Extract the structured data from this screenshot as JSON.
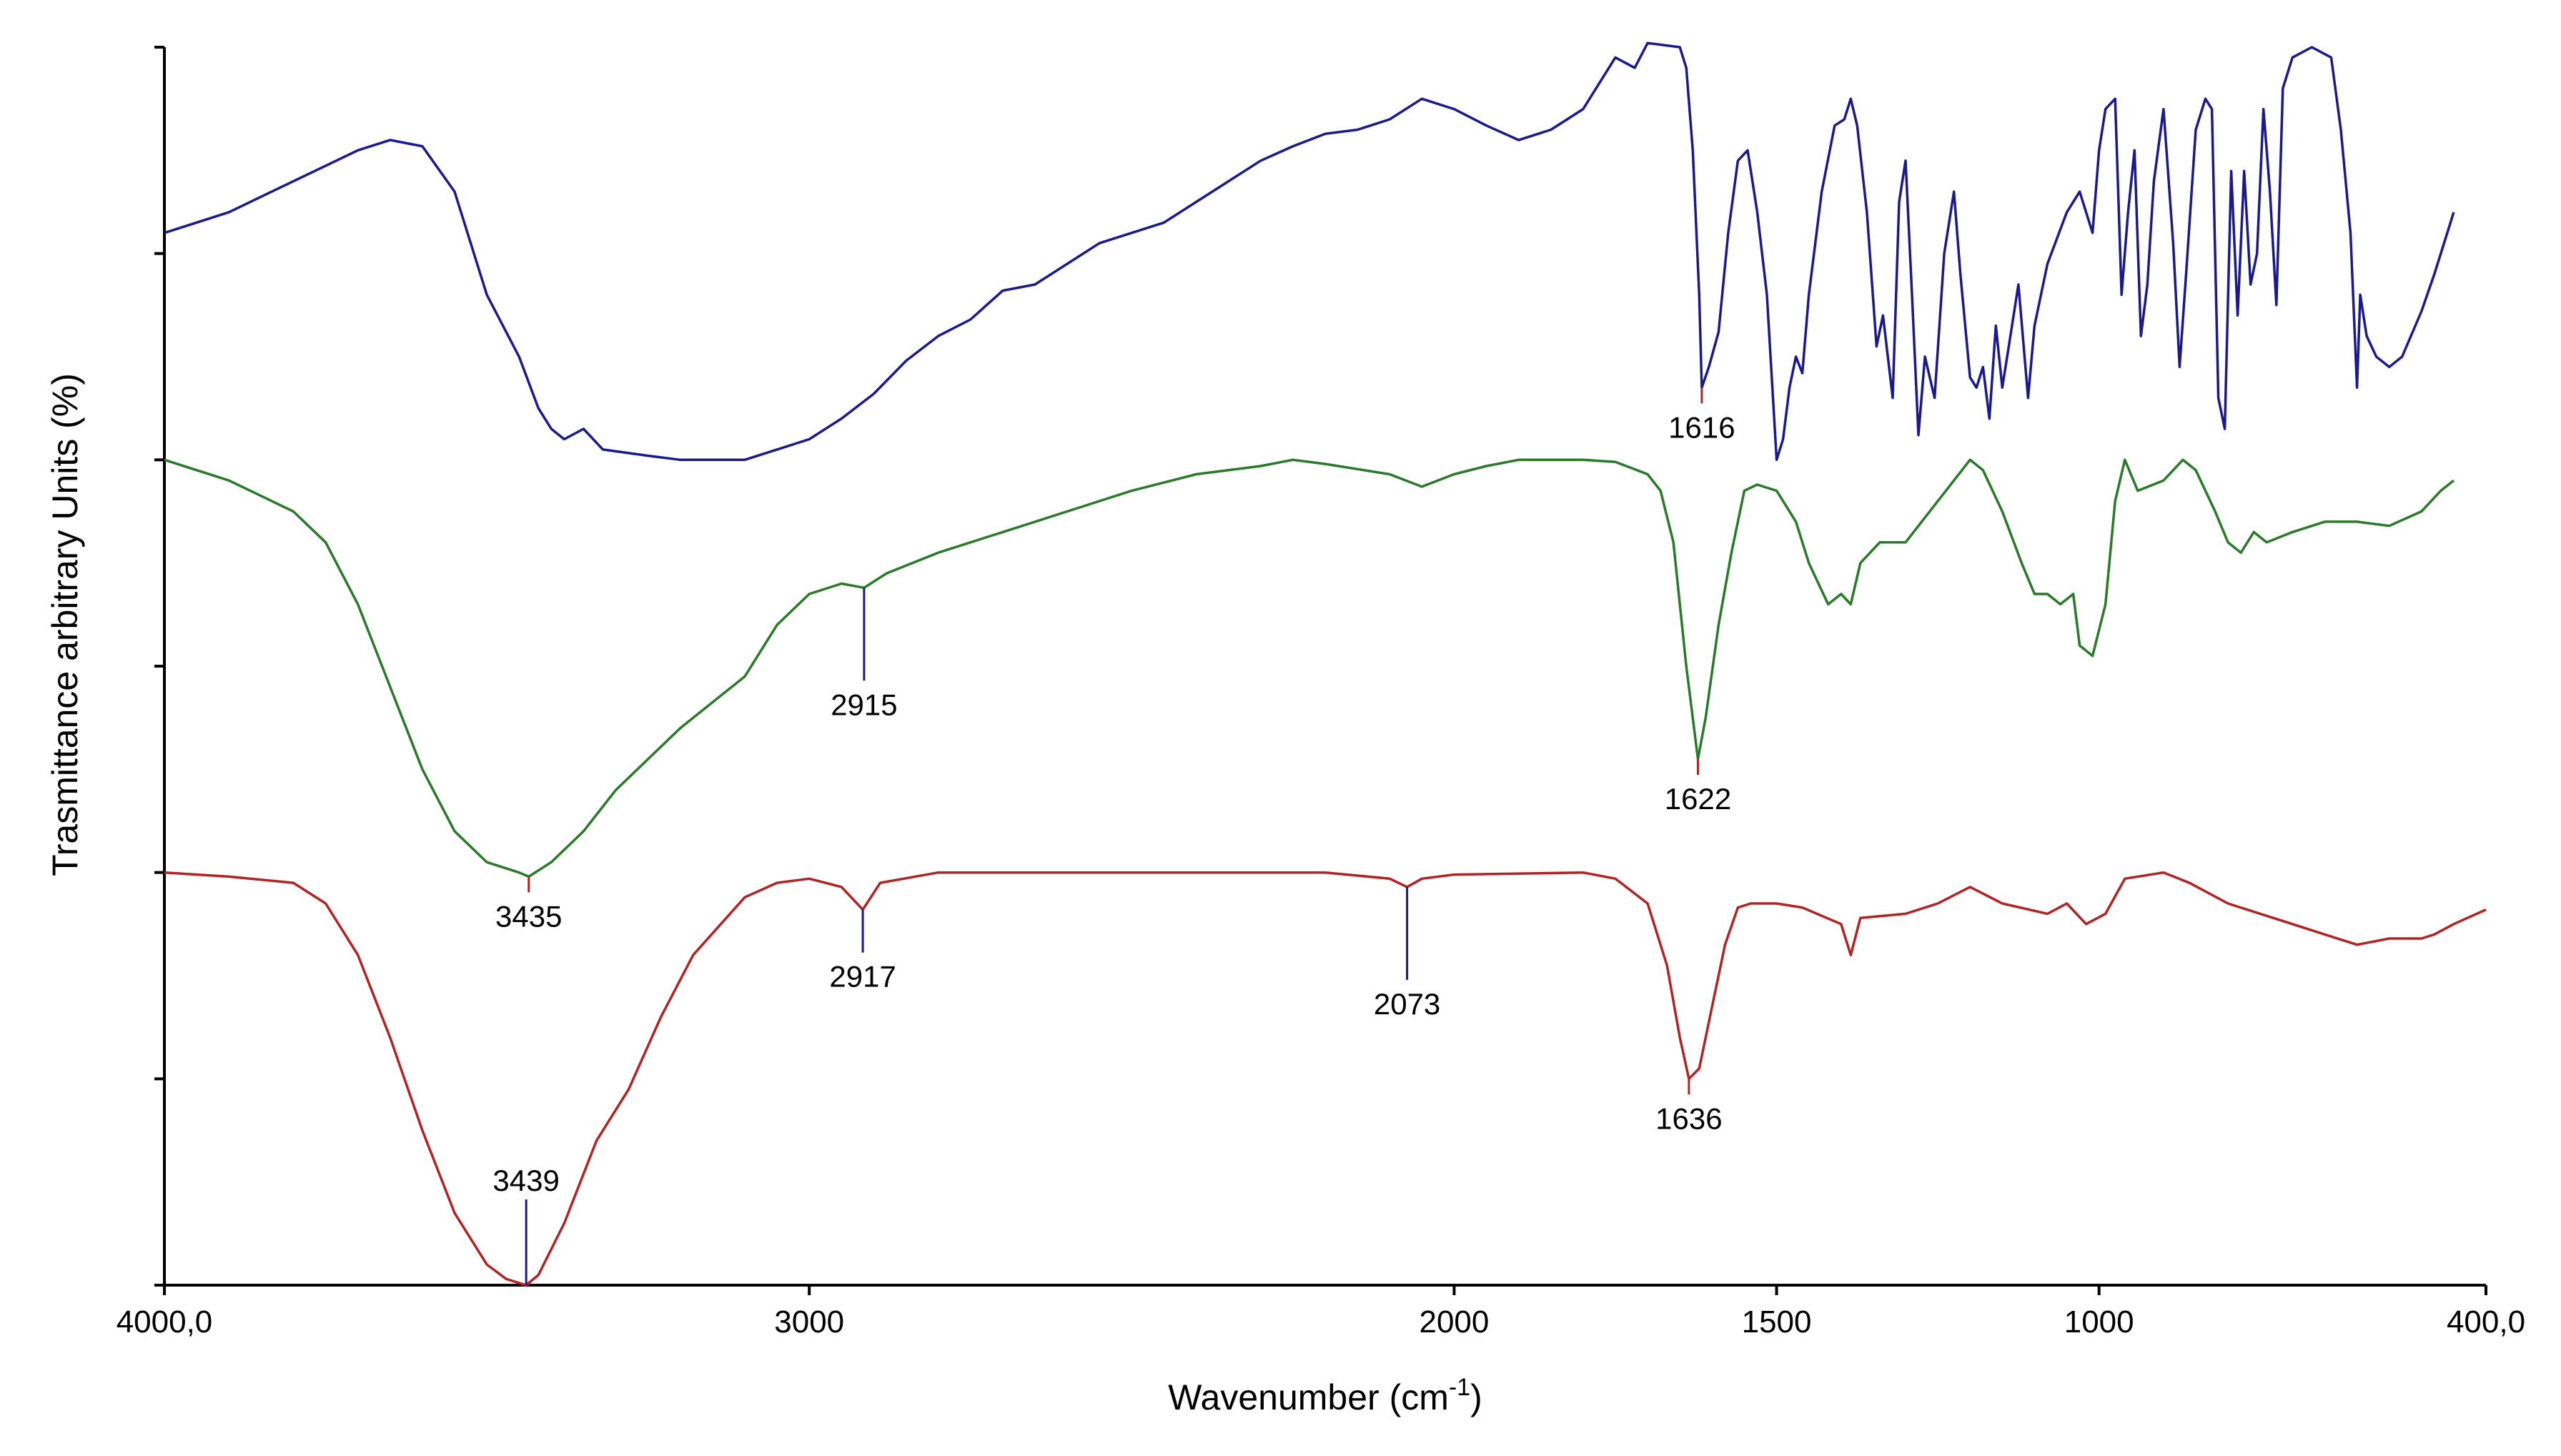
{
  "chart_data": {
    "type": "line",
    "xlabel": "Wavenumber (cm",
    "xlabel_sup": "-1",
    "xlabel_close": ")",
    "ylabel": "Trasmittance arbitrary Units (%)",
    "xlim": [
      4000,
      400
    ],
    "x_reversed": true,
    "x_ticks": [
      {
        "value": 4000,
        "label": "4000,0"
      },
      {
        "value": 3000,
        "label": "3000"
      },
      {
        "value": 2000,
        "label": "2000"
      },
      {
        "value": 1500,
        "label": "1500"
      },
      {
        "value": 1000,
        "label": "1000"
      },
      {
        "value": 400,
        "label": "400,0"
      }
    ],
    "ylim": [
      0,
      6
    ],
    "y_ticks": [
      0,
      1,
      2,
      3,
      4,
      5,
      6
    ],
    "y_tick_labels_shown": false,
    "grid": false,
    "legend": "none",
    "series": [
      {
        "color": "#1a1a8c",
        "points": [
          [
            4000,
            5.1
          ],
          [
            3900,
            5.2
          ],
          [
            3800,
            5.35
          ],
          [
            3700,
            5.5
          ],
          [
            3650,
            5.55
          ],
          [
            3600,
            5.52
          ],
          [
            3550,
            5.3
          ],
          [
            3500,
            4.8
          ],
          [
            3450,
            4.5
          ],
          [
            3420,
            4.25
          ],
          [
            3400,
            4.15
          ],
          [
            3380,
            4.1
          ],
          [
            3350,
            4.15
          ],
          [
            3320,
            4.05
          ],
          [
            3250,
            4.02
          ],
          [
            3200,
            4.0
          ],
          [
            3100,
            4.0
          ],
          [
            3050,
            4.05
          ],
          [
            3000,
            4.1
          ],
          [
            2950,
            4.2
          ],
          [
            2900,
            4.32
          ],
          [
            2850,
            4.48
          ],
          [
            2800,
            4.6
          ],
          [
            2750,
            4.68
          ],
          [
            2700,
            4.82
          ],
          [
            2650,
            4.85
          ],
          [
            2600,
            4.95
          ],
          [
            2550,
            5.05
          ],
          [
            2500,
            5.1
          ],
          [
            2450,
            5.15
          ],
          [
            2400,
            5.25
          ],
          [
            2350,
            5.35
          ],
          [
            2300,
            5.45
          ],
          [
            2250,
            5.52
          ],
          [
            2200,
            5.58
          ],
          [
            2150,
            5.6
          ],
          [
            2100,
            5.65
          ],
          [
            2050,
            5.75
          ],
          [
            2000,
            5.7
          ],
          [
            1950,
            5.62
          ],
          [
            1900,
            5.55
          ],
          [
            1850,
            5.6
          ],
          [
            1800,
            5.7
          ],
          [
            1750,
            5.95
          ],
          [
            1720,
            5.9
          ],
          [
            1700,
            6.02
          ],
          [
            1650,
            6.0
          ],
          [
            1640,
            5.9
          ],
          [
            1630,
            5.5
          ],
          [
            1620,
            4.8
          ],
          [
            1616,
            4.35
          ],
          [
            1605,
            4.45
          ],
          [
            1590,
            4.62
          ],
          [
            1575,
            5.1
          ],
          [
            1560,
            5.45
          ],
          [
            1545,
            5.5
          ],
          [
            1530,
            5.2
          ],
          [
            1515,
            4.8
          ],
          [
            1500,
            4.0
          ],
          [
            1490,
            4.1
          ],
          [
            1480,
            4.35
          ],
          [
            1470,
            4.5
          ],
          [
            1460,
            4.42
          ],
          [
            1450,
            4.8
          ],
          [
            1430,
            5.3
          ],
          [
            1410,
            5.62
          ],
          [
            1395,
            5.65
          ],
          [
            1385,
            5.75
          ],
          [
            1375,
            5.62
          ],
          [
            1360,
            5.2
          ],
          [
            1345,
            4.55
          ],
          [
            1335,
            4.7
          ],
          [
            1320,
            4.3
          ],
          [
            1310,
            5.25
          ],
          [
            1300,
            5.45
          ],
          [
            1290,
            4.8
          ],
          [
            1280,
            4.12
          ],
          [
            1270,
            4.5
          ],
          [
            1255,
            4.3
          ],
          [
            1240,
            5.0
          ],
          [
            1225,
            5.3
          ],
          [
            1215,
            4.9
          ],
          [
            1200,
            4.4
          ],
          [
            1190,
            4.35
          ],
          [
            1180,
            4.45
          ],
          [
            1170,
            4.2
          ],
          [
            1160,
            4.65
          ],
          [
            1150,
            4.35
          ],
          [
            1140,
            4.55
          ],
          [
            1125,
            4.85
          ],
          [
            1110,
            4.3
          ],
          [
            1100,
            4.65
          ],
          [
            1080,
            4.95
          ],
          [
            1050,
            5.2
          ],
          [
            1030,
            5.3
          ],
          [
            1010,
            5.1
          ],
          [
            1000,
            5.5
          ],
          [
            990,
            5.7
          ],
          [
            975,
            5.75
          ],
          [
            965,
            4.8
          ],
          [
            955,
            5.2
          ],
          [
            945,
            5.5
          ],
          [
            935,
            4.6
          ],
          [
            925,
            4.85
          ],
          [
            915,
            5.35
          ],
          [
            900,
            5.7
          ],
          [
            885,
            5.05
          ],
          [
            875,
            4.45
          ],
          [
            865,
            4.9
          ],
          [
            850,
            5.6
          ],
          [
            835,
            5.75
          ],
          [
            825,
            5.7
          ],
          [
            815,
            4.3
          ],
          [
            805,
            4.15
          ],
          [
            795,
            5.4
          ],
          [
            785,
            4.7
          ],
          [
            775,
            5.4
          ],
          [
            765,
            4.85
          ],
          [
            755,
            5.0
          ],
          [
            745,
            5.7
          ],
          [
            735,
            5.3
          ],
          [
            725,
            4.75
          ],
          [
            715,
            5.8
          ],
          [
            700,
            5.95
          ],
          [
            670,
            6.0
          ],
          [
            640,
            5.95
          ],
          [
            625,
            5.6
          ],
          [
            610,
            5.1
          ],
          [
            600,
            4.35
          ],
          [
            595,
            4.8
          ],
          [
            585,
            4.6
          ],
          [
            570,
            4.5
          ],
          [
            550,
            4.45
          ],
          [
            530,
            4.5
          ],
          [
            500,
            4.72
          ],
          [
            480,
            4.9
          ],
          [
            460,
            5.1
          ],
          [
            450,
            5.2
          ]
        ]
      },
      {
        "color": "#2a7a2a",
        "points": [
          [
            4000,
            4.0
          ],
          [
            3900,
            3.9
          ],
          [
            3800,
            3.75
          ],
          [
            3750,
            3.6
          ],
          [
            3700,
            3.3
          ],
          [
            3650,
            2.9
          ],
          [
            3600,
            2.5
          ],
          [
            3550,
            2.2
          ],
          [
            3500,
            2.05
          ],
          [
            3450,
            2.0
          ],
          [
            3435,
            1.98
          ],
          [
            3400,
            2.05
          ],
          [
            3350,
            2.2
          ],
          [
            3300,
            2.4
          ],
          [
            3200,
            2.7
          ],
          [
            3100,
            2.95
          ],
          [
            3050,
            3.2
          ],
          [
            3000,
            3.35
          ],
          [
            2950,
            3.4
          ],
          [
            2915,
            3.38
          ],
          [
            2880,
            3.45
          ],
          [
            2800,
            3.55
          ],
          [
            2700,
            3.65
          ],
          [
            2600,
            3.75
          ],
          [
            2500,
            3.85
          ],
          [
            2400,
            3.93
          ],
          [
            2300,
            3.97
          ],
          [
            2250,
            4.0
          ],
          [
            2200,
            3.98
          ],
          [
            2100,
            3.93
          ],
          [
            2050,
            3.87
          ],
          [
            2000,
            3.93
          ],
          [
            1950,
            3.97
          ],
          [
            1900,
            4.0
          ],
          [
            1800,
            4.0
          ],
          [
            1750,
            3.99
          ],
          [
            1700,
            3.93
          ],
          [
            1680,
            3.85
          ],
          [
            1660,
            3.6
          ],
          [
            1640,
            3.0
          ],
          [
            1622,
            2.55
          ],
          [
            1610,
            2.75
          ],
          [
            1590,
            3.2
          ],
          [
            1570,
            3.55
          ],
          [
            1550,
            3.85
          ],
          [
            1530,
            3.88
          ],
          [
            1500,
            3.85
          ],
          [
            1470,
            3.7
          ],
          [
            1450,
            3.5
          ],
          [
            1420,
            3.3
          ],
          [
            1400,
            3.35
          ],
          [
            1385,
            3.3
          ],
          [
            1370,
            3.5
          ],
          [
            1340,
            3.6
          ],
          [
            1300,
            3.6
          ],
          [
            1250,
            3.8
          ],
          [
            1200,
            4.0
          ],
          [
            1180,
            3.95
          ],
          [
            1150,
            3.75
          ],
          [
            1120,
            3.5
          ],
          [
            1100,
            3.35
          ],
          [
            1080,
            3.35
          ],
          [
            1060,
            3.3
          ],
          [
            1040,
            3.35
          ],
          [
            1030,
            3.1
          ],
          [
            1010,
            3.05
          ],
          [
            990,
            3.3
          ],
          [
            975,
            3.8
          ],
          [
            960,
            4.0
          ],
          [
            940,
            3.85
          ],
          [
            900,
            3.9
          ],
          [
            870,
            4.0
          ],
          [
            850,
            3.95
          ],
          [
            820,
            3.75
          ],
          [
            800,
            3.6
          ],
          [
            780,
            3.55
          ],
          [
            760,
            3.65
          ],
          [
            740,
            3.6
          ],
          [
            700,
            3.65
          ],
          [
            650,
            3.7
          ],
          [
            600,
            3.7
          ],
          [
            550,
            3.68
          ],
          [
            500,
            3.75
          ],
          [
            470,
            3.85
          ],
          [
            450,
            3.9
          ]
        ]
      },
      {
        "color": "#b02424",
        "points": [
          [
            4000,
            2.0
          ],
          [
            3900,
            1.98
          ],
          [
            3800,
            1.95
          ],
          [
            3750,
            1.85
          ],
          [
            3700,
            1.6
          ],
          [
            3650,
            1.2
          ],
          [
            3600,
            0.75
          ],
          [
            3550,
            0.35
          ],
          [
            3500,
            0.1
          ],
          [
            3470,
            0.03
          ],
          [
            3439,
            0.0
          ],
          [
            3420,
            0.05
          ],
          [
            3380,
            0.3
          ],
          [
            3330,
            0.7
          ],
          [
            3280,
            0.95
          ],
          [
            3230,
            1.3
          ],
          [
            3180,
            1.6
          ],
          [
            3100,
            1.88
          ],
          [
            3050,
            1.95
          ],
          [
            3000,
            1.97
          ],
          [
            2950,
            1.93
          ],
          [
            2917,
            1.82
          ],
          [
            2890,
            1.95
          ],
          [
            2800,
            2.0
          ],
          [
            2500,
            2.0
          ],
          [
            2200,
            2.0
          ],
          [
            2100,
            1.97
          ],
          [
            2073,
            1.93
          ],
          [
            2050,
            1.97
          ],
          [
            2000,
            1.99
          ],
          [
            1800,
            2.0
          ],
          [
            1750,
            1.97
          ],
          [
            1700,
            1.85
          ],
          [
            1670,
            1.55
          ],
          [
            1650,
            1.2
          ],
          [
            1636,
            1.0
          ],
          [
            1620,
            1.05
          ],
          [
            1600,
            1.35
          ],
          [
            1580,
            1.65
          ],
          [
            1560,
            1.83
          ],
          [
            1540,
            1.85
          ],
          [
            1500,
            1.85
          ],
          [
            1460,
            1.83
          ],
          [
            1400,
            1.75
          ],
          [
            1385,
            1.6
          ],
          [
            1370,
            1.78
          ],
          [
            1300,
            1.8
          ],
          [
            1250,
            1.85
          ],
          [
            1200,
            1.93
          ],
          [
            1150,
            1.85
          ],
          [
            1080,
            1.8
          ],
          [
            1050,
            1.85
          ],
          [
            1020,
            1.75
          ],
          [
            990,
            1.8
          ],
          [
            960,
            1.97
          ],
          [
            900,
            2.0
          ],
          [
            860,
            1.95
          ],
          [
            800,
            1.85
          ],
          [
            750,
            1.8
          ],
          [
            700,
            1.75
          ],
          [
            650,
            1.7
          ],
          [
            600,
            1.65
          ],
          [
            550,
            1.68
          ],
          [
            500,
            1.68
          ],
          [
            480,
            1.7
          ],
          [
            450,
            1.75
          ],
          [
            400,
            1.82
          ]
        ]
      }
    ],
    "annotations": [
      {
        "text": "1616",
        "x": 1616,
        "y": 4.35,
        "color": "#b02424"
      },
      {
        "text": "2915",
        "x": 2915,
        "y": 3.38,
        "color": "#1a1a8c"
      },
      {
        "text": "1622",
        "x": 1622,
        "y": 2.55,
        "color": "#b02424"
      },
      {
        "text": "3435",
        "x": 3435,
        "y": 1.98,
        "color": "#b02424"
      },
      {
        "text": "2917",
        "x": 2917,
        "y": 1.82,
        "color": "#1a1a8c"
      },
      {
        "text": "2073",
        "x": 2073,
        "y": 1.93,
        "color": "#1a1a8c"
      },
      {
        "text": "1636",
        "x": 1636,
        "y": 1.0,
        "color": "#b02424"
      },
      {
        "text": "3439",
        "x": 3439,
        "y": 0.0,
        "color": "#1a1a8c"
      }
    ]
  }
}
